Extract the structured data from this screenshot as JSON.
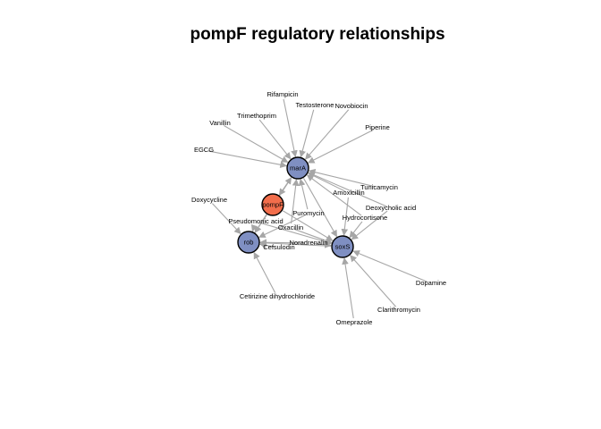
{
  "title": "pompF regulatory relationships",
  "colors": {
    "regulator": "#7f8fc2",
    "target": "#f26e4c",
    "edge": "#a6a6a6",
    "node_border": "#000000"
  },
  "nodes": [
    {
      "id": "marA",
      "label": "marA",
      "kind": "regulator"
    },
    {
      "id": "soxS",
      "label": "soxS",
      "kind": "regulator"
    },
    {
      "id": "rob",
      "label": "rob",
      "kind": "regulator"
    },
    {
      "id": "pompF",
      "label": "pompF",
      "kind": "target"
    },
    {
      "id": "Rifampicin",
      "label": "Rifampicin",
      "kind": "compound"
    },
    {
      "id": "Testosterone",
      "label": "Testosterone",
      "kind": "compound"
    },
    {
      "id": "Novobiocin",
      "label": "Novobiocin",
      "kind": "compound"
    },
    {
      "id": "Trimethoprim",
      "label": "Trimethoprim",
      "kind": "compound"
    },
    {
      "id": "Vanillin",
      "label": "Vanillin",
      "kind": "compound"
    },
    {
      "id": "Piperine",
      "label": "Piperine",
      "kind": "compound"
    },
    {
      "id": "EGCG",
      "label": "EGCG",
      "kind": "compound"
    },
    {
      "id": "Tunicamycin",
      "label": "Tunicamycin",
      "kind": "compound"
    },
    {
      "id": "Amoxicillin",
      "label": "Amoxicillin",
      "kind": "compound"
    },
    {
      "id": "Doxycycline",
      "label": "Doxycycline",
      "kind": "compound"
    },
    {
      "id": "Deoxycholic acid",
      "label": "Deoxycholic acid",
      "kind": "compound"
    },
    {
      "id": "Puromycin",
      "label": "Puromycin",
      "kind": "compound"
    },
    {
      "id": "Hydrocortisone",
      "label": "Hydrocortisone",
      "kind": "compound"
    },
    {
      "id": "Pseudomonic acid",
      "label": "Pseudomonic acid",
      "kind": "compound"
    },
    {
      "id": "Oxacillin",
      "label": "Oxacillin",
      "kind": "compound"
    },
    {
      "id": "Cefsulodin",
      "label": "Cefsulodin",
      "kind": "compound"
    },
    {
      "id": "Noradrenalin",
      "label": "Noradrenalin",
      "kind": "compound"
    },
    {
      "id": "Dopamine",
      "label": "Dopamine",
      "kind": "compound"
    },
    {
      "id": "Cetirizine dihydrochloride",
      "label": "Cetirizine dihydrochloride",
      "kind": "compound"
    },
    {
      "id": "Clarithromycin",
      "label": "Clarithromycin",
      "kind": "compound"
    },
    {
      "id": "Omeprazole",
      "label": "Omeprazole",
      "kind": "compound"
    }
  ],
  "edges": [
    {
      "from": "Rifampicin",
      "to": "marA"
    },
    {
      "from": "Testosterone",
      "to": "marA"
    },
    {
      "from": "Novobiocin",
      "to": "marA"
    },
    {
      "from": "Trimethoprim",
      "to": "marA"
    },
    {
      "from": "Vanillin",
      "to": "marA"
    },
    {
      "from": "Piperine",
      "to": "marA"
    },
    {
      "from": "EGCG",
      "to": "marA"
    },
    {
      "from": "Tunicamycin",
      "to": "marA"
    },
    {
      "from": "Amoxicillin",
      "to": "marA"
    },
    {
      "from": "Deoxycholic acid",
      "to": "marA"
    },
    {
      "from": "Hydrocortisone",
      "to": "marA"
    },
    {
      "from": "Puromycin",
      "to": "marA"
    },
    {
      "from": "pompF",
      "to": "marA"
    },
    {
      "from": "marA",
      "to": "pompF"
    },
    {
      "from": "marA",
      "to": "rob"
    },
    {
      "from": "Oxacillin",
      "to": "marA"
    },
    {
      "from": "Doxycycline",
      "to": "rob"
    },
    {
      "from": "Pseudomonic acid",
      "to": "rob"
    },
    {
      "from": "Cefsulodin",
      "to": "rob"
    },
    {
      "from": "Cetirizine dihydrochloride",
      "to": "rob"
    },
    {
      "from": "pompF",
      "to": "rob"
    },
    {
      "from": "soxS",
      "to": "rob"
    },
    {
      "from": "Noradrenalin",
      "to": "rob"
    },
    {
      "from": "Puromycin",
      "to": "rob"
    },
    {
      "from": "Amoxicillin",
      "to": "soxS"
    },
    {
      "from": "Deoxycholic acid",
      "to": "soxS"
    },
    {
      "from": "Hydrocortisone",
      "to": "soxS"
    },
    {
      "from": "Dopamine",
      "to": "soxS"
    },
    {
      "from": "Clarithromycin",
      "to": "soxS"
    },
    {
      "from": "Omeprazole",
      "to": "soxS"
    },
    {
      "from": "pompF",
      "to": "soxS"
    },
    {
      "from": "marA",
      "to": "soxS"
    },
    {
      "from": "Noradrenalin",
      "to": "soxS"
    },
    {
      "from": "Oxacillin",
      "to": "soxS"
    },
    {
      "from": "Pseudomonic acid",
      "to": "soxS"
    }
  ]
}
